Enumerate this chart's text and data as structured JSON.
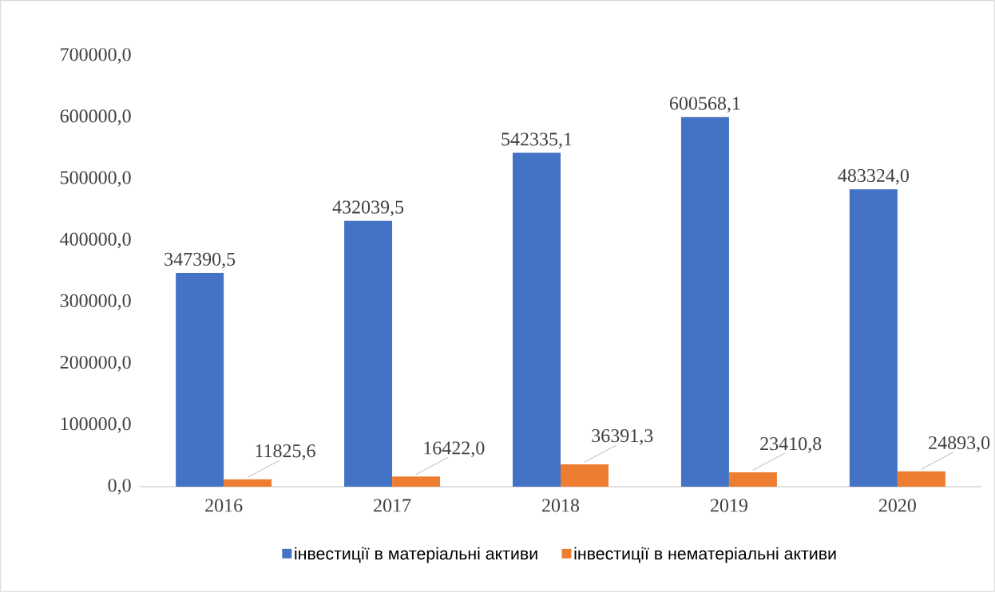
{
  "chart_data": {
    "type": "bar",
    "categories": [
      "2016",
      "2017",
      "2018",
      "2019",
      "2020"
    ],
    "series": [
      {
        "name": "інвестиції в матеріальні активи",
        "color": "#4472c4",
        "values": [
          347390.5,
          432039.5,
          542335.1,
          600568.1,
          483324.0
        ],
        "value_labels": [
          "347390,5",
          "432039,5",
          "542335,1",
          "600568,1",
          "483324,0"
        ]
      },
      {
        "name": "інвестиції в нематеріальні активи",
        "color": "#ed7d31",
        "values": [
          11825.6,
          16422.0,
          36391.3,
          23410.8,
          24893.0
        ],
        "value_labels": [
          "11825,6",
          "16422,0",
          "36391,3",
          "23410,8",
          "24893,0"
        ]
      }
    ],
    "ylim": [
      0,
      700000
    ],
    "yticks": [
      {
        "value": 0,
        "label": "0,0"
      },
      {
        "value": 100000,
        "label": "100000,0"
      },
      {
        "value": 200000,
        "label": "200000,0"
      },
      {
        "value": 300000,
        "label": "300000,0"
      },
      {
        "value": 400000,
        "label": "400000,0"
      },
      {
        "value": 500000,
        "label": "500000,0"
      },
      {
        "value": 600000,
        "label": "600000,0"
      },
      {
        "value": 700000,
        "label": "700000,0"
      }
    ],
    "legend": "bottom"
  }
}
